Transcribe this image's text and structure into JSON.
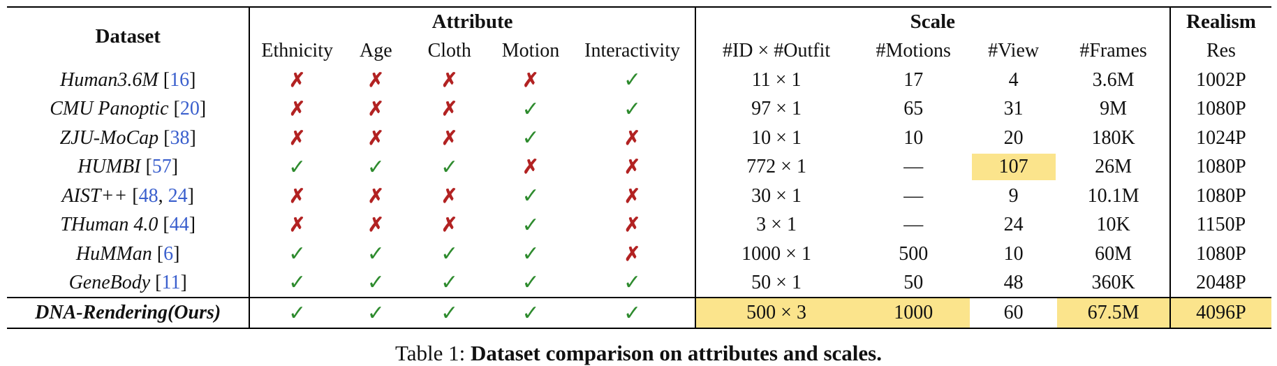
{
  "table": {
    "group_headers": {
      "dataset": "Dataset",
      "attribute": "Attribute",
      "scale": "Scale",
      "realism": "Realism"
    },
    "columns": [
      "Ethnicity",
      "Age",
      "Cloth",
      "Motion",
      "Interactivity",
      "#ID × #Outfit",
      "#Motions",
      "#View",
      "#Frames",
      "Res"
    ],
    "rows": [
      {
        "name": "Human3.6M",
        "refs": [
          "16"
        ],
        "ethnicity": "✗",
        "age": "✗",
        "cloth": "✗",
        "motion": "✗",
        "interactivity": "✓",
        "id_outfit": "11 × 1",
        "motions": "17",
        "view": "4",
        "frames": "3.6M",
        "res": "1002P"
      },
      {
        "name": "CMU Panoptic",
        "refs": [
          "20"
        ],
        "ethnicity": "✗",
        "age": "✗",
        "cloth": "✗",
        "motion": "✓",
        "interactivity": "✓",
        "id_outfit": "97 × 1",
        "motions": "65",
        "view": "31",
        "frames": "9M",
        "res": "1080P"
      },
      {
        "name": "ZJU-MoCap",
        "refs": [
          "38"
        ],
        "ethnicity": "✗",
        "age": "✗",
        "cloth": "✗",
        "motion": "✓",
        "interactivity": "✗",
        "id_outfit": "10 × 1",
        "motions": "10",
        "view": "20",
        "frames": "180K",
        "res": "1024P"
      },
      {
        "name": "HUMBI",
        "refs": [
          "57"
        ],
        "ethnicity": "✓",
        "age": "✓",
        "cloth": "✓",
        "motion": "✗",
        "interactivity": "✗",
        "id_outfit": "772 × 1",
        "motions": "—",
        "view": "107",
        "frames": "26M",
        "res": "1080P"
      },
      {
        "name": "AIST++",
        "refs": [
          "48",
          "24"
        ],
        "ethnicity": "✗",
        "age": "✗",
        "cloth": "✗",
        "motion": "✓",
        "interactivity": "✗",
        "id_outfit": "30 × 1",
        "motions": "—",
        "view": "9",
        "frames": "10.1M",
        "res": "1080P"
      },
      {
        "name": "THuman 4.0",
        "refs": [
          "44"
        ],
        "ethnicity": "✗",
        "age": "✗",
        "cloth": "✗",
        "motion": "✓",
        "interactivity": "✗",
        "id_outfit": "3 × 1",
        "motions": "—",
        "view": "24",
        "frames": "10K",
        "res": "1150P"
      },
      {
        "name": "HuMMan",
        "refs": [
          "6"
        ],
        "ethnicity": "✓",
        "age": "✓",
        "cloth": "✓",
        "motion": "✓",
        "interactivity": "✗",
        "id_outfit": "1000 × 1",
        "motions": "500",
        "view": "10",
        "frames": "60M",
        "res": "1080P"
      },
      {
        "name": "GeneBody",
        "refs": [
          "11"
        ],
        "ethnicity": "✓",
        "age": "✓",
        "cloth": "✓",
        "motion": "✓",
        "interactivity": "✓",
        "id_outfit": "50 × 1",
        "motions": "50",
        "view": "48",
        "frames": "360K",
        "res": "2048P"
      }
    ],
    "ours": {
      "name": "DNA-Rendering(Ours)",
      "ethnicity": "✓",
      "age": "✓",
      "cloth": "✓",
      "motion": "✓",
      "interactivity": "✓",
      "id_outfit": "500 × 3",
      "motions": "1000",
      "view": "60",
      "frames": "67.5M",
      "res": "4096P"
    }
  },
  "caption": {
    "prefix": "Table 1: ",
    "text": "Dataset comparison on attributes and scales."
  },
  "colors": {
    "check": "#2e8b2e",
    "cross": "#b22222",
    "highlight": "#fbe48c",
    "citation": "#3a5fcd"
  }
}
